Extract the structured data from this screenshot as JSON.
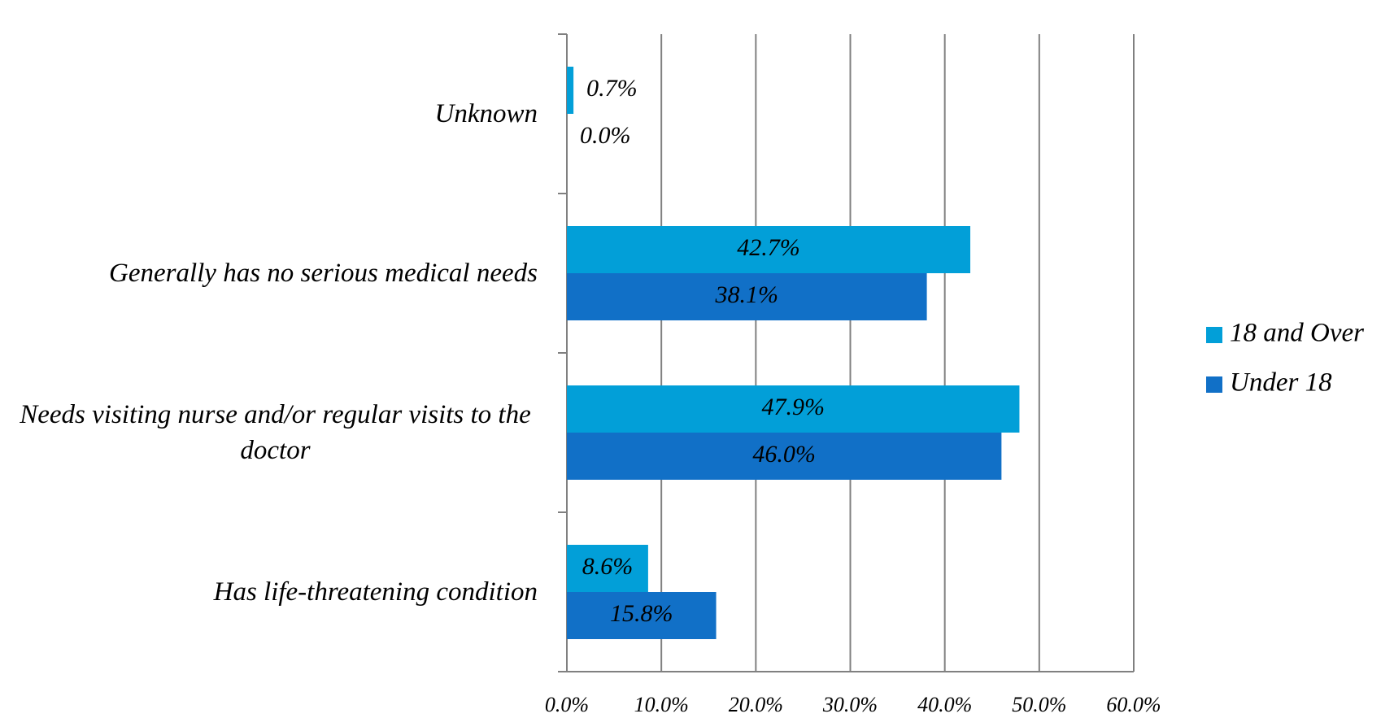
{
  "chart_data": {
    "type": "bar",
    "orientation": "horizontal",
    "categories": [
      "Unknown",
      "Generally has no serious medical needs",
      "Needs visiting nurse and/or regular visits to the doctor",
      "Has life-threatening condition"
    ],
    "series": [
      {
        "name": "18 and Over",
        "color": "#029fd8",
        "values": [
          0.7,
          42.7,
          47.9,
          8.6
        ],
        "value_labels": [
          "0.7%",
          "42.7%",
          "47.9%",
          "8.6%"
        ]
      },
      {
        "name": "Under 18",
        "color": "#1170c7",
        "values": [
          0.0,
          38.1,
          46.0,
          15.8
        ],
        "value_labels": [
          "0.0%",
          "38.1%",
          "46.0%",
          "15.8%"
        ]
      }
    ],
    "xlim": [
      0,
      60
    ],
    "xticks": [
      {
        "value": 0,
        "label": "0.0%"
      },
      {
        "value": 10,
        "label": "10.0%"
      },
      {
        "value": 20,
        "label": "20.0%"
      },
      {
        "value": 30,
        "label": "30.0%"
      },
      {
        "value": 40,
        "label": "40.0%"
      },
      {
        "value": 50,
        "label": "50.0%"
      },
      {
        "value": 60,
        "label": "60.0%"
      }
    ],
    "grid": true,
    "legend": "right"
  }
}
